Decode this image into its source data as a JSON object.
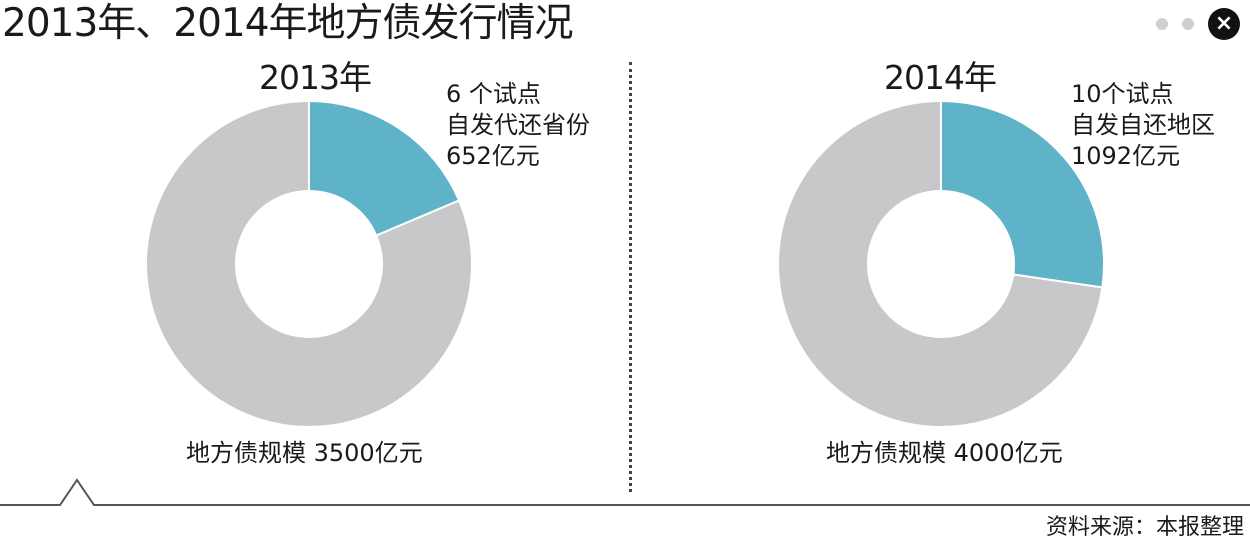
{
  "page": {
    "title": "2013年、2014年地方债发行情况",
    "source": "资料来源：本报整理"
  },
  "controls": {
    "close_icon": "×"
  },
  "colors": {
    "pilot": "#5eb3c9",
    "rest": "#c8c8ca"
  },
  "chart_data": [
    {
      "type": "pie",
      "title": "2013年",
      "total": 3500,
      "total_label": "地方债规模 3500亿元",
      "slices": [
        {
          "value": 652,
          "color": "#5eb3c9"
        },
        {
          "value": 2848,
          "color": "#c8c8ca"
        }
      ],
      "annotation": {
        "line1": "6 个试点",
        "line2": "自发代还省份",
        "line3": "652亿元"
      }
    },
    {
      "type": "pie",
      "title": "2014年",
      "total": 4000,
      "total_label": "地方债规模 4000亿元",
      "slices": [
        {
          "value": 1092,
          "color": "#5eb3c9"
        },
        {
          "value": 2908,
          "color": "#c8c8ca"
        }
      ],
      "annotation": {
        "line1": "10个试点",
        "line2": "自发自还地区",
        "line3": "1092亿元"
      }
    }
  ]
}
